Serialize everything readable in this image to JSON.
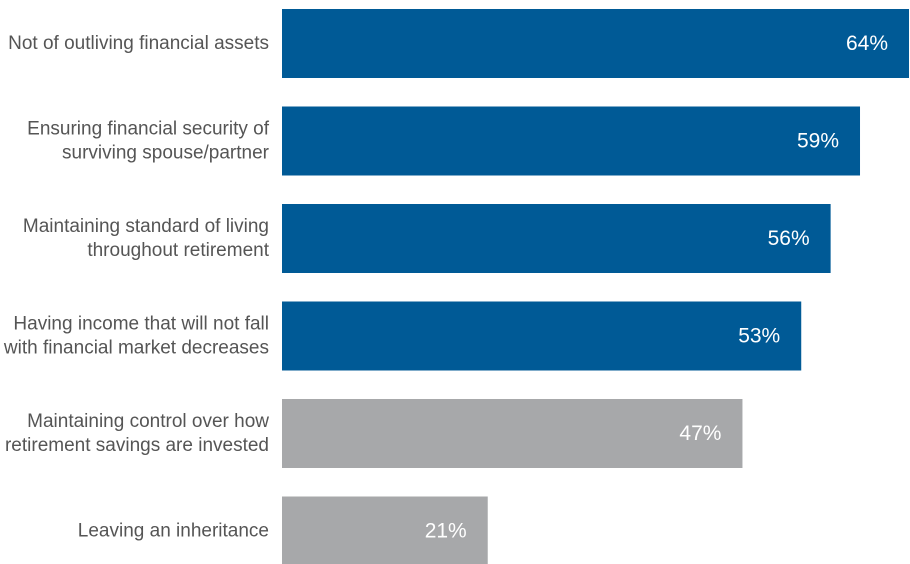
{
  "chart_data": {
    "type": "bar",
    "orientation": "horizontal",
    "categories": [
      [
        "Not of outliving financial assets"
      ],
      [
        "Ensuring financial security of",
        "surviving spouse/partner"
      ],
      [
        "Maintaining standard of living",
        "throughout retirement"
      ],
      [
        "Having income that will not fall",
        "with financial market decreases"
      ],
      [
        "Maintaining control over how",
        "retirement savings are invested"
      ],
      [
        "Leaving an inheritance"
      ]
    ],
    "values": [
      64,
      59,
      56,
      53,
      47,
      21
    ],
    "value_labels": [
      "64%",
      "59%",
      "56%",
      "53%",
      "47%",
      "21%"
    ],
    "xlim": [
      0,
      64
    ],
    "colors": {
      "highlight": "#005a96",
      "muted": "#a7a8aa",
      "label_text": "#555555",
      "value_text": "#ffffff"
    },
    "bar_colors": [
      "highlight",
      "highlight",
      "highlight",
      "highlight",
      "muted",
      "muted"
    ]
  }
}
